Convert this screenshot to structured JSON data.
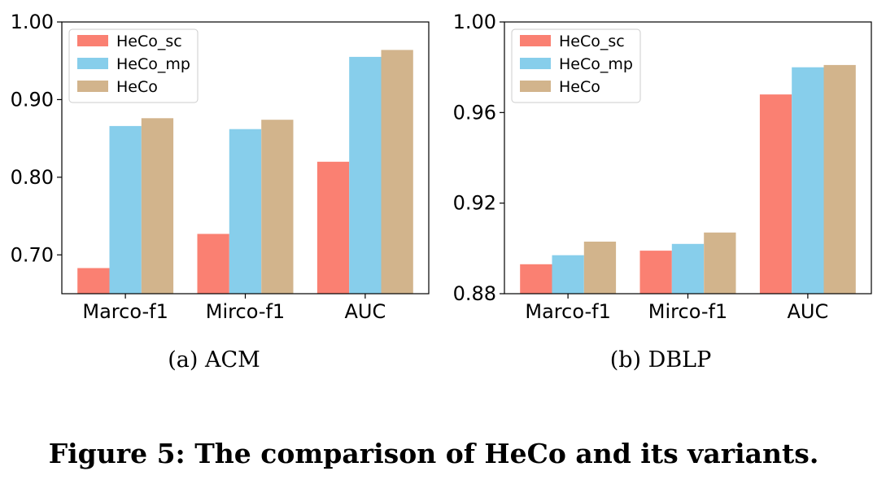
{
  "chart_data": [
    {
      "type": "bar",
      "caption": "(a)  ACM",
      "categories": [
        "Marco-f1",
        "Mirco-f1",
        "AUC"
      ],
      "series": [
        {
          "name": "HeCo_sc",
          "color": "#fa8072",
          "values": [
            0.683,
            0.727,
            0.82
          ]
        },
        {
          "name": "HeCo_mp",
          "color": "#87ceeb",
          "values": [
            0.866,
            0.862,
            0.955
          ]
        },
        {
          "name": "HeCo",
          "color": "#d2b48c",
          "values": [
            0.876,
            0.874,
            0.964
          ]
        }
      ],
      "ylim": [
        0.65,
        1.0
      ],
      "yticks": [
        0.7,
        0.8,
        0.9,
        1.0
      ],
      "ytick_labels": [
        "0.70",
        "0.80",
        "0.90",
        "1.00"
      ],
      "legend": "top-left",
      "grid": false
    },
    {
      "type": "bar",
      "caption": "(b)  DBLP",
      "categories": [
        "Marco-f1",
        "Mirco-f1",
        "AUC"
      ],
      "series": [
        {
          "name": "HeCo_sc",
          "color": "#fa8072",
          "values": [
            0.893,
            0.899,
            0.968
          ]
        },
        {
          "name": "HeCo_mp",
          "color": "#87ceeb",
          "values": [
            0.897,
            0.902,
            0.98
          ]
        },
        {
          "name": "HeCo",
          "color": "#d2b48c",
          "values": [
            0.903,
            0.907,
            0.981
          ]
        }
      ],
      "ylim": [
        0.88,
        1.0
      ],
      "yticks": [
        0.88,
        0.92,
        0.96,
        1.0
      ],
      "ytick_labels": [
        "0.88",
        "0.92",
        "0.96",
        "1.00"
      ],
      "legend": "top-left",
      "grid": false
    }
  ],
  "figure_caption": "Figure 5: The comparison of HeCo and its variants."
}
